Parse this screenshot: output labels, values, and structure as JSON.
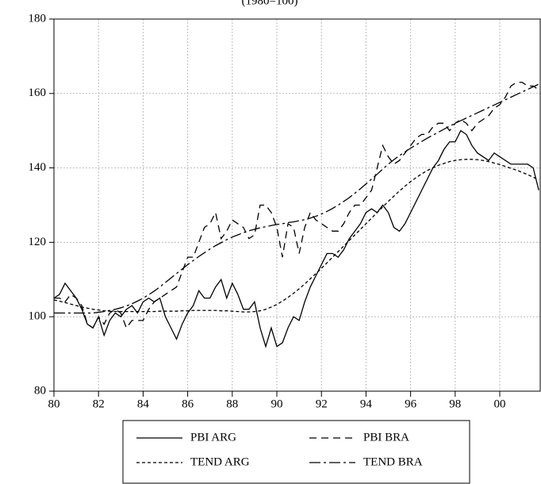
{
  "chart_data": {
    "type": "line",
    "title": "(1980=100)",
    "x": [
      1980,
      1980.25,
      1980.5,
      1980.75,
      1981,
      1981.25,
      1981.5,
      1981.75,
      1982,
      1982.25,
      1982.5,
      1982.75,
      1983,
      1983.25,
      1983.5,
      1983.75,
      1984,
      1984.25,
      1984.5,
      1984.75,
      1985,
      1985.25,
      1985.5,
      1985.75,
      1986,
      1986.25,
      1986.5,
      1986.75,
      1987,
      1987.25,
      1987.5,
      1987.75,
      1988,
      1988.25,
      1988.5,
      1988.75,
      1989,
      1989.25,
      1989.5,
      1989.75,
      1990,
      1990.25,
      1990.5,
      1990.75,
      1991,
      1991.25,
      1991.5,
      1991.75,
      1992,
      1992.25,
      1992.5,
      1992.75,
      1993,
      1993.25,
      1993.5,
      1993.75,
      1994,
      1994.25,
      1994.5,
      1994.75,
      1995,
      1995.25,
      1995.5,
      1995.75,
      1996,
      1996.25,
      1996.5,
      1996.75,
      1997,
      1997.25,
      1997.5,
      1997.75,
      1998,
      1998.25,
      1998.5,
      1998.75,
      1999,
      1999.25,
      1999.5,
      1999.75,
      2000,
      2000.25,
      2000.5,
      2000.75,
      2001,
      2001.25,
      2001.5,
      2001.75
    ],
    "series": [
      {
        "name": "PBI ARG",
        "color": "#000000",
        "dash": "none",
        "values": [
          105,
          106,
          109,
          107,
          105,
          102,
          98,
          97,
          100,
          95,
          99,
          101,
          100,
          102,
          103,
          101,
          104,
          105,
          104,
          105,
          100,
          97,
          94,
          98,
          101,
          103,
          107,
          105,
          105,
          108,
          110,
          105,
          109,
          106,
          102,
          102,
          104,
          97,
          92,
          97,
          92,
          93,
          97,
          100,
          99,
          104,
          108,
          111,
          114,
          117,
          117,
          116,
          118,
          121,
          123,
          125,
          128,
          129,
          128,
          130,
          128,
          124,
          123,
          125,
          128,
          131,
          134,
          137,
          140,
          142,
          145,
          147,
          147,
          150,
          149,
          146,
          144,
          143,
          142,
          144,
          143,
          142,
          141,
          141,
          141,
          141,
          140,
          134
        ]
      },
      {
        "name": "PBI BRA",
        "color": "#000000",
        "dash": "9,6",
        "values": [
          105,
          105,
          104,
          106,
          105,
          103,
          98,
          97,
          100,
          98,
          101,
          102,
          101,
          97,
          99,
          99,
          99,
          102,
          104,
          105,
          106,
          107,
          108,
          112,
          116,
          116,
          120,
          124,
          125,
          128,
          121,
          123,
          126,
          125,
          124,
          121,
          122,
          130,
          130,
          128,
          124,
          116,
          125,
          124,
          117,
          124,
          128,
          126,
          125,
          124,
          123,
          123,
          125,
          128,
          130,
          130,
          132,
          134,
          140,
          146,
          143,
          141,
          142,
          144,
          146,
          148,
          149,
          149,
          151,
          152,
          152,
          150,
          152,
          153,
          152,
          150,
          152,
          153,
          154,
          156,
          157,
          159,
          162,
          163,
          163,
          162,
          162,
          161
        ]
      },
      {
        "name": "TEND ARG",
        "color": "#000000",
        "dash": "4,3",
        "values": [
          104.5,
          104.2,
          103.8,
          103.4,
          103,
          102.6,
          102.3,
          102,
          101.8,
          101.6,
          101.5,
          101.4,
          101.4,
          101.4,
          101.4,
          101.4,
          101.4,
          101.4,
          101.4,
          101.5,
          101.5,
          101.5,
          101.5,
          101.6,
          101.6,
          101.7,
          101.7,
          101.7,
          101.7,
          101.7,
          101.6,
          101.6,
          101.5,
          101.4,
          101.3,
          101.3,
          101.4,
          101.6,
          102,
          102.6,
          103.3,
          104.2,
          105.2,
          106.3,
          107.5,
          108.8,
          110.2,
          111.6,
          113,
          114.5,
          116,
          117.5,
          119,
          120.5,
          122,
          123.5,
          125,
          126.5,
          128,
          129.5,
          131,
          132.4,
          133.8,
          135.1,
          136.3,
          137.4,
          138.4,
          139.3,
          140,
          140.7,
          141.2,
          141.7,
          142,
          142.2,
          142.3,
          142.3,
          142.2,
          142,
          141.7,
          141.3,
          140.9,
          140.4,
          139.9,
          139.4,
          138.8,
          138.2,
          137.5,
          136.8
        ]
      },
      {
        "name": "TEND BRA",
        "color": "#000000",
        "dash": "14,4,3,4",
        "values": [
          101,
          101,
          101,
          101,
          101,
          101,
          101,
          101,
          101.2,
          101.4,
          101.7,
          102,
          102.4,
          102.9,
          103.5,
          104.2,
          105,
          105.9,
          106.9,
          108,
          109.2,
          110.4,
          111.6,
          112.8,
          114,
          115.1,
          116.2,
          117.2,
          118.2,
          119.1,
          119.9,
          120.7,
          121.4,
          122,
          122.6,
          123.1,
          123.5,
          123.9,
          124.2,
          124.5,
          124.8,
          125,
          125.3,
          125.5,
          125.8,
          126.1,
          126.5,
          127,
          127.6,
          128.3,
          129.1,
          130,
          131,
          132,
          133.2,
          134.4,
          135.7,
          137,
          138.3,
          139.7,
          141,
          142.2,
          143.3,
          144.3,
          145.3,
          146.2,
          147.1,
          148,
          148.8,
          149.6,
          150.4,
          151.2,
          152,
          152.7,
          153.4,
          154.1,
          154.8,
          155.5,
          156.2,
          156.9,
          157.6,
          158.3,
          159,
          159.7,
          160.4,
          161.1,
          161.8,
          162.5
        ]
      }
    ],
    "xlim": [
      1980,
      2001.85
    ],
    "xticks": [
      {
        "value": 1980,
        "label": "80"
      },
      {
        "value": 1982,
        "label": "82"
      },
      {
        "value": 1984,
        "label": "84"
      },
      {
        "value": 1986,
        "label": "86"
      },
      {
        "value": 1988,
        "label": "88"
      },
      {
        "value": 1990,
        "label": "90"
      },
      {
        "value": 1992,
        "label": "92"
      },
      {
        "value": 1994,
        "label": "94"
      },
      {
        "value": 1996,
        "label": "96"
      },
      {
        "value": 1998,
        "label": "98"
      },
      {
        "value": 2000,
        "label": "00"
      }
    ],
    "ylim": [
      80,
      180
    ],
    "yticks": [
      80,
      100,
      120,
      140,
      160,
      180
    ],
    "grid": true,
    "legend": "bottom"
  }
}
